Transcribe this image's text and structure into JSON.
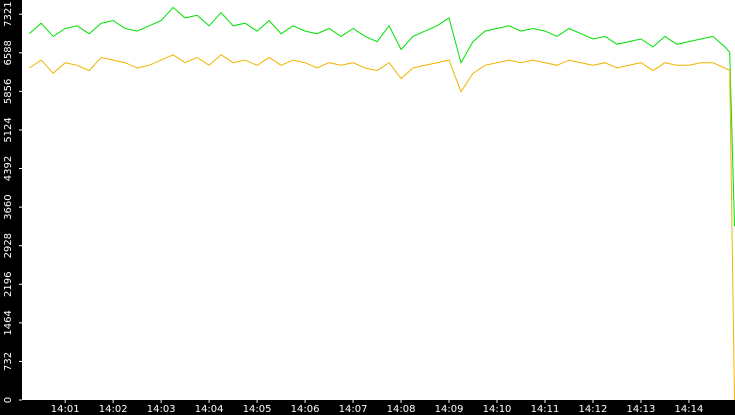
{
  "chart_data": {
    "type": "line",
    "x": [
      840.25,
      840.5,
      840.75,
      841,
      841.25,
      841.5,
      841.75,
      842,
      842.25,
      842.5,
      842.75,
      843,
      843.25,
      843.5,
      843.75,
      844,
      844.25,
      844.5,
      844.75,
      845,
      845.25,
      845.5,
      845.75,
      846,
      846.25,
      846.5,
      846.75,
      847,
      847.25,
      847.5,
      847.75,
      848,
      848.25,
      848.5,
      848.75,
      849,
      849.25,
      849.5,
      849.75,
      850,
      850.25,
      850.5,
      850.75,
      851,
      851.25,
      851.5,
      851.75,
      852,
      852.25,
      852.5,
      852.75,
      853,
      853.25,
      853.5,
      853.75,
      854,
      854.25,
      854.5,
      854.75,
      854.85,
      854.95
    ],
    "series": [
      {
        "color": "#00e000",
        "values": [
          6950,
          7150,
          6900,
          7050,
          7100,
          6950,
          7150,
          7200,
          7050,
          7000,
          7100,
          7200,
          7450,
          7250,
          7300,
          7100,
          7350,
          7100,
          7150,
          7000,
          7200,
          6950,
          7100,
          7000,
          6950,
          7050,
          6900,
          7050,
          6900,
          6800,
          7100,
          6650,
          6900,
          7000,
          7100,
          7250,
          6400,
          6800,
          7000,
          7050,
          7100,
          7000,
          7050,
          7000,
          6900,
          7050,
          6950,
          6850,
          6900,
          6750,
          6800,
          6850,
          6700,
          6900,
          6750,
          6800,
          6850,
          6900,
          6700,
          6600,
          3300
        ]
      },
      {
        "color": "#f0b400",
        "values": [
          6300,
          6450,
          6200,
          6400,
          6350,
          6250,
          6500,
          6450,
          6400,
          6300,
          6350,
          6450,
          6550,
          6400,
          6500,
          6350,
          6550,
          6400,
          6450,
          6350,
          6500,
          6350,
          6450,
          6400,
          6300,
          6400,
          6350,
          6400,
          6300,
          6250,
          6400,
          6100,
          6300,
          6350,
          6400,
          6450,
          5850,
          6200,
          6350,
          6400,
          6450,
          6400,
          6450,
          6400,
          6350,
          6450,
          6400,
          6350,
          6400,
          6300,
          6350,
          6400,
          6250,
          6400,
          6350,
          6350,
          6400,
          6400,
          6300,
          6250,
          0
        ]
      }
    ],
    "xlim": [
      840.1,
      854.96
    ],
    "xticks": [
      {
        "value": 841,
        "label": "14:01"
      },
      {
        "value": 842,
        "label": "14:02"
      },
      {
        "value": 843,
        "label": "14:03"
      },
      {
        "value": 844,
        "label": "14:04"
      },
      {
        "value": 845,
        "label": "14:05"
      },
      {
        "value": 846,
        "label": "14:06"
      },
      {
        "value": 847,
        "label": "14:07"
      },
      {
        "value": 848,
        "label": "14:08"
      },
      {
        "value": 849,
        "label": "14:09"
      },
      {
        "value": 850,
        "label": "14:10"
      },
      {
        "value": 851,
        "label": "14:11"
      },
      {
        "value": 852,
        "label": "14:12"
      },
      {
        "value": 853,
        "label": "14:13"
      },
      {
        "value": 854,
        "label": "14:14"
      }
    ],
    "ylim": [
      0,
      7590
    ],
    "yticks": [
      0,
      732,
      1464,
      2196,
      2928,
      3660,
      4392,
      5124,
      5856,
      6588,
      7321
    ]
  }
}
